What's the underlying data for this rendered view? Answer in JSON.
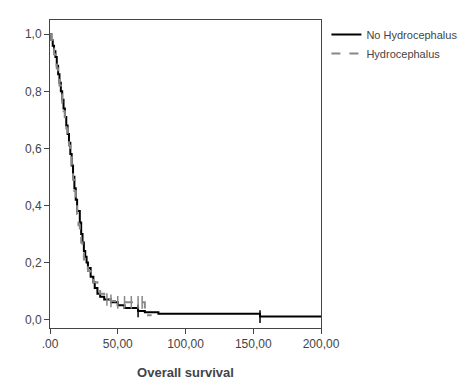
{
  "chart_data": {
    "type": "step",
    "xlabel": "Overall survival",
    "xlim": [
      0,
      200
    ],
    "ylim": [
      -0.03,
      1.05
    ],
    "xticks": [
      {
        "value": 0,
        "label": ".00"
      },
      {
        "value": 50,
        "label": "50,00"
      },
      {
        "value": 100,
        "label": "100,00"
      },
      {
        "value": 150,
        "label": "150,00"
      },
      {
        "value": 200,
        "label": "200,00"
      }
    ],
    "yticks": [
      {
        "value": 0.0,
        "label": "0,0"
      },
      {
        "value": 0.2,
        "label": "0,2"
      },
      {
        "value": 0.4,
        "label": "0,4"
      },
      {
        "value": 0.6,
        "label": "0,6"
      },
      {
        "value": 0.8,
        "label": "0,8"
      },
      {
        "value": 1.0,
        "label": "1,0"
      }
    ],
    "grid": false,
    "legend": "right",
    "series": [
      {
        "name": "No Hydrocephalus",
        "color": "#000000",
        "line_style": "solid",
        "x": [
          0,
          1,
          2,
          3,
          4,
          5,
          6,
          7,
          8,
          9,
          10,
          11,
          12,
          13,
          14,
          15,
          16,
          17,
          18,
          19,
          20,
          22,
          23,
          24,
          25,
          26,
          27,
          28,
          30,
          32,
          33,
          35,
          37,
          40,
          45,
          50,
          55,
          65,
          70,
          80,
          90,
          100,
          110,
          120,
          130,
          155,
          200
        ],
        "values": [
          1.0,
          0.98,
          0.96,
          0.94,
          0.92,
          0.89,
          0.86,
          0.83,
          0.8,
          0.77,
          0.74,
          0.71,
          0.68,
          0.65,
          0.62,
          0.58,
          0.54,
          0.5,
          0.46,
          0.42,
          0.38,
          0.34,
          0.3,
          0.27,
          0.24,
          0.22,
          0.2,
          0.18,
          0.15,
          0.13,
          0.11,
          0.09,
          0.08,
          0.07,
          0.06,
          0.05,
          0.04,
          0.03,
          0.025,
          0.02,
          0.02,
          0.02,
          0.02,
          0.02,
          0.02,
          0.01,
          0.01
        ],
        "censored_x": [
          65,
          155
        ],
        "censored_y": [
          0.03,
          0.01
        ]
      },
      {
        "name": "Hydrocephalus",
        "color": "#888888",
        "line_style": "dashed",
        "x": [
          0,
          1,
          2,
          3,
          4,
          5,
          6,
          7,
          8,
          9,
          10,
          11,
          12,
          13,
          14,
          15,
          16,
          17,
          18,
          19,
          20,
          21,
          22,
          23,
          24,
          25,
          27,
          28,
          30,
          32,
          35,
          37,
          40,
          42,
          45,
          48,
          50,
          55,
          60,
          65,
          68,
          70,
          75
        ],
        "values": [
          1.0,
          0.98,
          0.95,
          0.93,
          0.91,
          0.88,
          0.85,
          0.82,
          0.79,
          0.76,
          0.73,
          0.7,
          0.67,
          0.64,
          0.61,
          0.57,
          0.53,
          0.49,
          0.45,
          0.41,
          0.37,
          0.33,
          0.3,
          0.27,
          0.24,
          0.21,
          0.19,
          0.17,
          0.15,
          0.13,
          0.11,
          0.09,
          0.08,
          0.07,
          0.065,
          0.06,
          0.06,
          0.06,
          0.06,
          0.06,
          0.06,
          0.015,
          0.015
        ],
        "censored_x": [
          42,
          45,
          50,
          55,
          60,
          65,
          68
        ],
        "censored_y": [
          0.07,
          0.065,
          0.06,
          0.06,
          0.06,
          0.06,
          0.06
        ]
      }
    ]
  }
}
